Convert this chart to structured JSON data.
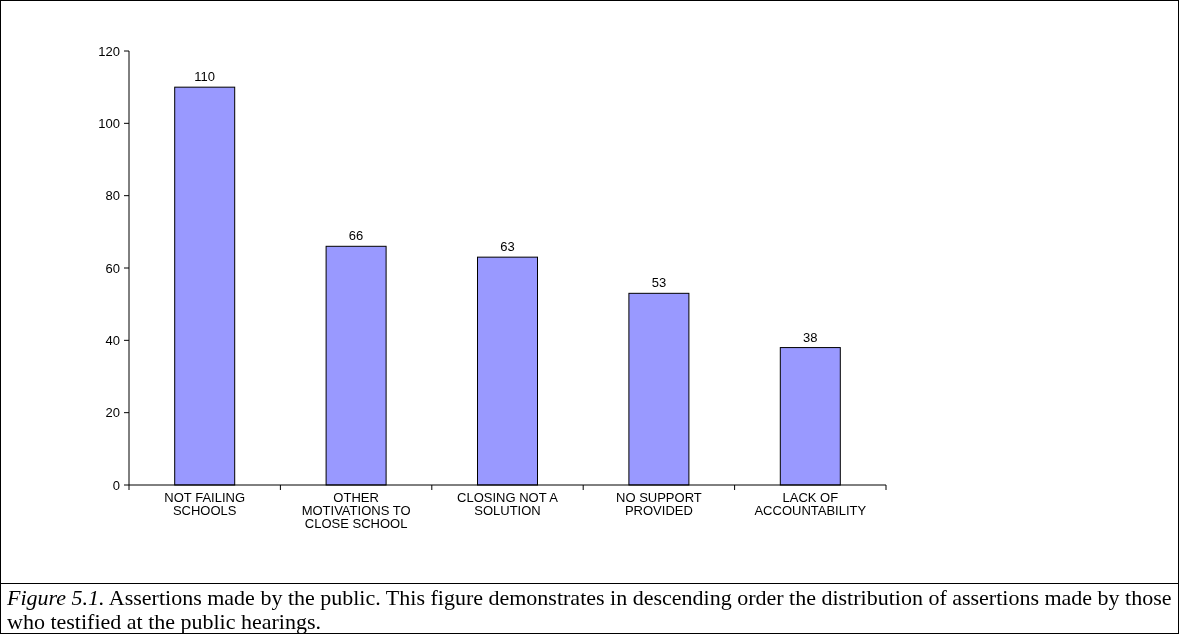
{
  "chart_data": {
    "type": "bar",
    "categories": [
      "NOT FAILING SCHOOLS",
      "OTHER MOTIVATIONS TO CLOSE SCHOOL",
      "CLOSING NOT A SOLUTION",
      "NO SUPPORT PROVIDED",
      "LACK OF ACCOUNTABILITY"
    ],
    "values": [
      110,
      66,
      63,
      53,
      38
    ],
    "color": "#9999ff",
    "ylim": [
      0,
      120
    ],
    "yticks": [
      0,
      20,
      40,
      60,
      80,
      100,
      120
    ],
    "data_labels": true,
    "annotations": [
      "Figure 5.1.",
      "Assertions made by the public. This figure demonstrates in descending order the distribution of assertions made by those who testified at the public hearings."
    ]
  }
}
